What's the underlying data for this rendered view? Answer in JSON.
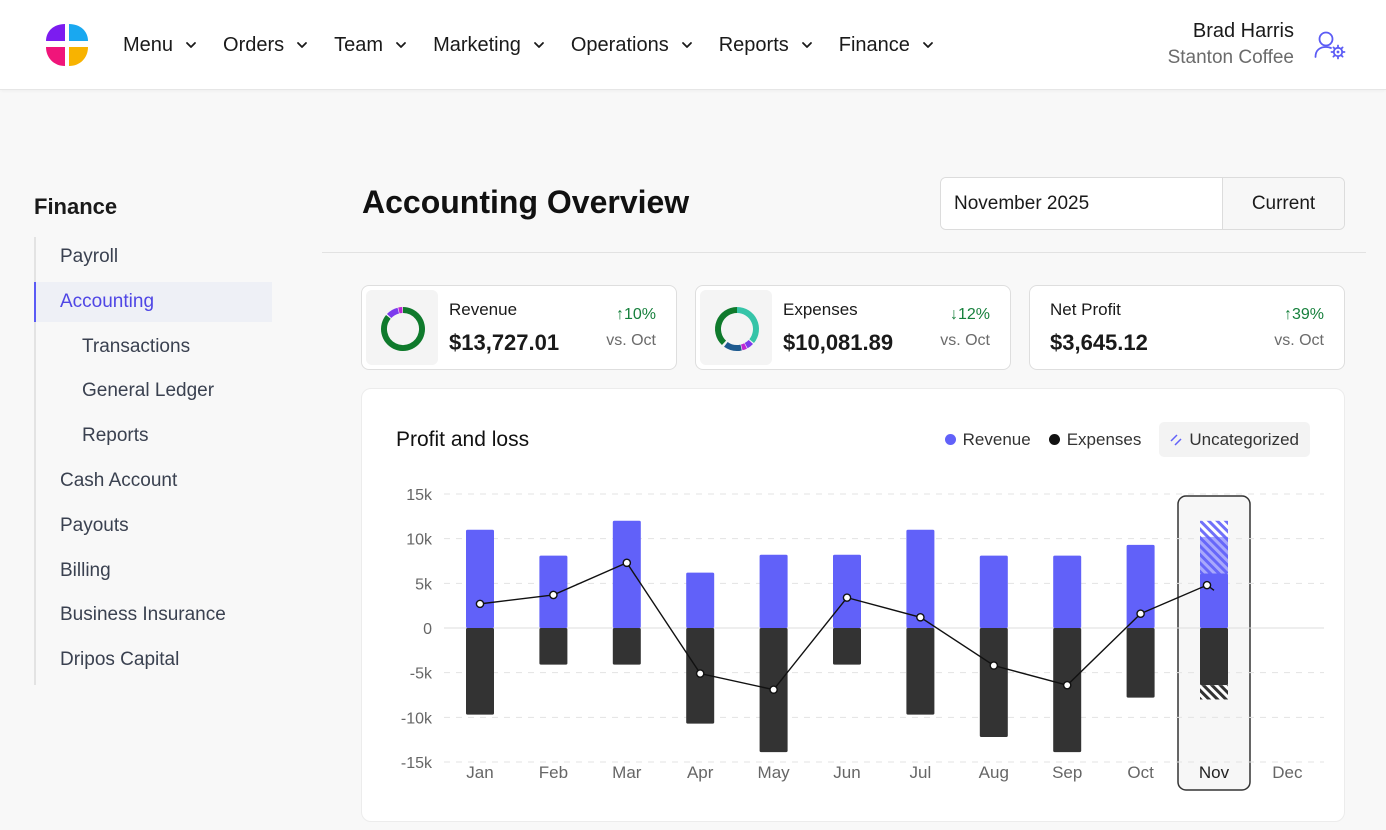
{
  "nav": {
    "items": [
      {
        "label": "Menu",
        "key": "menu"
      },
      {
        "label": "Orders",
        "key": "orders"
      },
      {
        "label": "Team",
        "key": "team"
      },
      {
        "label": "Marketing",
        "key": "marketing"
      },
      {
        "label": "Operations",
        "key": "operations"
      },
      {
        "label": "Reports",
        "key": "reports"
      },
      {
        "label": "Finance",
        "key": "finance"
      }
    ],
    "user_name": "Brad Harris",
    "user_org": "Stanton Coffee",
    "logo_icon": "logo-flower-icon",
    "user_icon": "user-settings-icon"
  },
  "sidebar": {
    "title": "Finance",
    "items": [
      {
        "label": "Payroll",
        "level": 0,
        "active": false
      },
      {
        "label": "Accounting",
        "level": 0,
        "active": true
      },
      {
        "label": "Transactions",
        "level": 1,
        "active": false
      },
      {
        "label": "General Ledger",
        "level": 1,
        "active": false
      },
      {
        "label": "Reports",
        "level": 1,
        "active": false
      },
      {
        "label": "Cash Account",
        "level": 0,
        "active": false
      },
      {
        "label": "Payouts",
        "level": 0,
        "active": false
      },
      {
        "label": "Billing",
        "level": 0,
        "active": false
      },
      {
        "label": "Business Insurance",
        "level": 0,
        "active": false
      },
      {
        "label": "Dripos Capital",
        "level": 0,
        "active": false
      }
    ]
  },
  "header": {
    "title": "Accounting Overview",
    "date_value": "November 2025",
    "current_label": "Current"
  },
  "metrics": [
    {
      "key": "revenue",
      "label": "Revenue",
      "value": "$13,727.01",
      "delta": "10%",
      "direction": "up",
      "compare": "vs. Oct",
      "has_donut": true
    },
    {
      "key": "expenses",
      "label": "Expenses",
      "value": "$10,081.89",
      "delta": "12%",
      "direction": "down",
      "compare": "vs. Oct",
      "has_donut": true
    },
    {
      "key": "net_profit",
      "label": "Net Profit",
      "value": "$3,645.12",
      "delta": "39%",
      "direction": "up",
      "compare": "vs. Oct",
      "has_donut": false
    }
  ],
  "colors": {
    "accent": "#5b5bf5",
    "revenue": "#6161f9",
    "expenses": "#333333",
    "positive": "#16803c",
    "donut_green": "#0f7a2c",
    "donut_teal": "#36c4a8",
    "donut_purple": "#7c3aed",
    "donut_blue": "#1e5a8f",
    "donut_pink": "#c026d3"
  },
  "chart": {
    "title": "Profit and loss",
    "legend": {
      "revenue": "Revenue",
      "expenses": "Expenses",
      "uncategorized": "Uncategorized"
    }
  },
  "chart_data": {
    "type": "bar",
    "title": "Profit and loss",
    "categories": [
      "Jan",
      "Feb",
      "Mar",
      "Apr",
      "May",
      "Jun",
      "Jul",
      "Aug",
      "Sep",
      "Oct",
      "Nov",
      "Dec"
    ],
    "series": [
      {
        "name": "Revenue",
        "values": [
          11000,
          8100,
          12000,
          6200,
          8200,
          8200,
          11000,
          8100,
          8100,
          9300,
          6100,
          null
        ]
      },
      {
        "name": "Expenses",
        "values": [
          -9700,
          -4100,
          -4100,
          -10700,
          -13900,
          -4100,
          -9700,
          -12200,
          -13900,
          -7800,
          -6400,
          null
        ]
      },
      {
        "name": "Uncategorized Revenue",
        "values": [
          null,
          null,
          null,
          null,
          null,
          null,
          null,
          null,
          null,
          null,
          6000,
          null
        ]
      },
      {
        "name": "Uncategorized Expenses",
        "values": [
          null,
          null,
          null,
          null,
          null,
          null,
          null,
          null,
          null,
          null,
          -1600,
          null
        ]
      },
      {
        "name": "Net",
        "type": "line",
        "values": [
          2700,
          3700,
          7300,
          -5100,
          -6900,
          3400,
          1200,
          -4200,
          -6400,
          1600,
          4800,
          null
        ]
      }
    ],
    "selected_category": "Nov",
    "yticks": [
      15000,
      10000,
      5000,
      0,
      -5000,
      -10000,
      -15000
    ],
    "ytick_labels": [
      "15k",
      "10k",
      "5k",
      "0",
      "-5k",
      "-10k",
      "-15k"
    ],
    "ylim": [
      -15000,
      15000
    ],
    "xlabel": "",
    "ylabel": "",
    "legend_position": "top-right",
    "grid": true
  }
}
